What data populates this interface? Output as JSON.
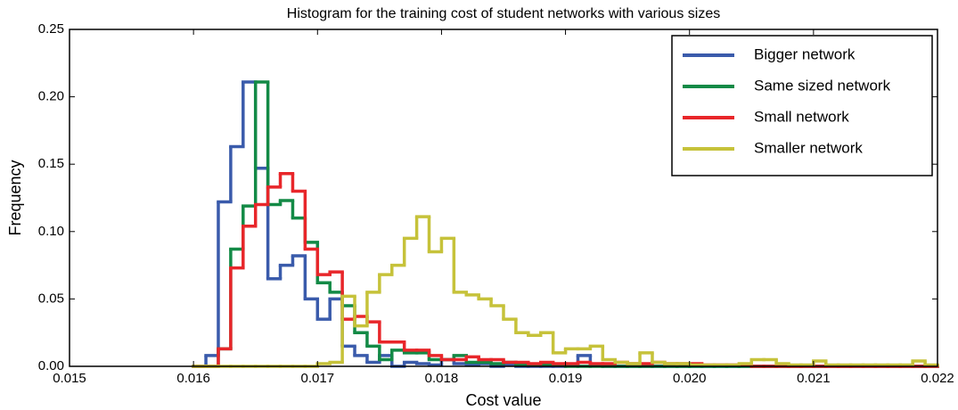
{
  "chart_data": {
    "type": "histogram",
    "title": "Histogram for the training cost of student networks with various sizes",
    "xlabel": "Cost value",
    "ylabel": "Frequency",
    "xlim": [
      0.015,
      0.022
    ],
    "ylim": [
      0,
      0.25
    ],
    "xticks": [
      0.015,
      0.016,
      0.017,
      0.018,
      0.019,
      {
        "value": 0.02,
        "label": "0.020"
      },
      0.021,
      0.022
    ],
    "yticks": [
      {
        "value": 0,
        "label": "0.00"
      },
      0.05,
      {
        "value": 0.1,
        "label": "0.10"
      },
      0.15,
      {
        "value": 0.2,
        "label": "0.20"
      },
      0.25
    ],
    "legend": "upper right",
    "bins": [
      0.016,
      0.0161,
      0.0162,
      0.0163,
      0.0164,
      0.0165,
      0.0166,
      0.0167,
      0.0168,
      0.0169,
      0.017,
      0.0171,
      0.0172,
      0.0173,
      0.0174,
      0.0175,
      0.0176,
      0.0177,
      0.0178,
      0.0179,
      0.018,
      0.0181,
      0.0182,
      0.0183,
      0.0184,
      0.0185,
      0.0186,
      0.0187,
      0.0188,
      0.0189,
      0.019,
      0.0191,
      0.0192,
      0.0193,
      0.0194,
      0.0195,
      0.0196,
      0.0197,
      0.0198,
      0.0199,
      0.02,
      0.0201,
      0.0202,
      0.0203,
      0.0204,
      0.0205,
      0.0206,
      0.0207,
      0.0208,
      0.0209,
      0.021,
      0.0211,
      0.0212,
      0.0213,
      0.0214,
      0.0215,
      0.0216,
      0.0217,
      0.0218,
      0.0219,
      0.022
    ],
    "series": [
      {
        "name": "Bigger network",
        "color": "#3a5bab",
        "values": [
          0,
          0.008,
          0.122,
          0.163,
          0.211,
          0.147,
          0.065,
          0.075,
          0.082,
          0.05,
          0.035,
          0.05,
          0.015,
          0.008,
          0.003,
          0.008,
          0,
          0.003,
          0.002,
          0.001,
          0.005,
          0.002,
          0.001,
          0.002,
          0,
          0.001,
          0,
          0,
          0,
          0,
          0.001,
          0.008,
          0.001,
          0,
          0,
          0,
          0,
          0,
          0,
          0,
          0,
          0,
          0,
          0,
          0,
          0,
          0,
          0,
          0,
          0,
          0,
          0,
          0,
          0,
          0,
          0,
          0,
          0,
          0,
          0
        ]
      },
      {
        "name": "Same sized network",
        "color": "#138a46",
        "values": [
          0,
          0,
          0.013,
          0.087,
          0.119,
          0.211,
          0.12,
          0.123,
          0.11,
          0.092,
          0.062,
          0.055,
          0.045,
          0.025,
          0.015,
          0.005,
          0.012,
          0.01,
          0.01,
          0.005,
          0.005,
          0.008,
          0.003,
          0.003,
          0.002,
          0.003,
          0.001,
          0.001,
          0.001,
          0.001,
          0,
          0,
          0,
          0,
          0,
          0,
          0,
          0,
          0,
          0,
          0,
          0,
          0,
          0,
          0,
          0,
          0,
          0,
          0,
          0,
          0,
          0,
          0,
          0,
          0,
          0,
          0,
          0,
          0,
          0
        ]
      },
      {
        "name": "Small network",
        "color": "#e8262a",
        "values": [
          0,
          0,
          0.013,
          0.073,
          0.104,
          0.12,
          0.133,
          0.143,
          0.13,
          0.087,
          0.068,
          0.07,
          0.035,
          0.037,
          0.033,
          0.018,
          0.018,
          0.012,
          0.012,
          0.008,
          0.005,
          0.005,
          0.007,
          0.005,
          0.005,
          0.003,
          0.003,
          0.002,
          0.003,
          0.002,
          0.002,
          0.003,
          0.002,
          0.002,
          0.003,
          0.002,
          0.002,
          0.003,
          0.002,
          0.002,
          0.002,
          0.001,
          0.001,
          0.001,
          0.001,
          0,
          0,
          0,
          0,
          0,
          0,
          0,
          0,
          0,
          0,
          0,
          0,
          0,
          0,
          0
        ]
      },
      {
        "name": "Smaller network",
        "color": "#c6c23a",
        "values": [
          0,
          0,
          0,
          0,
          0,
          0,
          0,
          0,
          0,
          0,
          0.002,
          0.003,
          0.052,
          0.03,
          0.055,
          0.068,
          0.075,
          0.095,
          0.111,
          0.085,
          0.095,
          0.055,
          0.053,
          0.05,
          0.045,
          0.035,
          0.025,
          0.023,
          0.025,
          0.01,
          0.013,
          0.013,
          0.015,
          0.005,
          0.003,
          0.002,
          0.01,
          0.003,
          0.002,
          0.002,
          0.001,
          0.001,
          0.001,
          0.001,
          0.002,
          0.005,
          0.005,
          0.002,
          0.001,
          0.001,
          0.004,
          0.001,
          0.001,
          0.001,
          0.001,
          0.001,
          0.001,
          0.001,
          0.004,
          0.001
        ]
      }
    ]
  }
}
